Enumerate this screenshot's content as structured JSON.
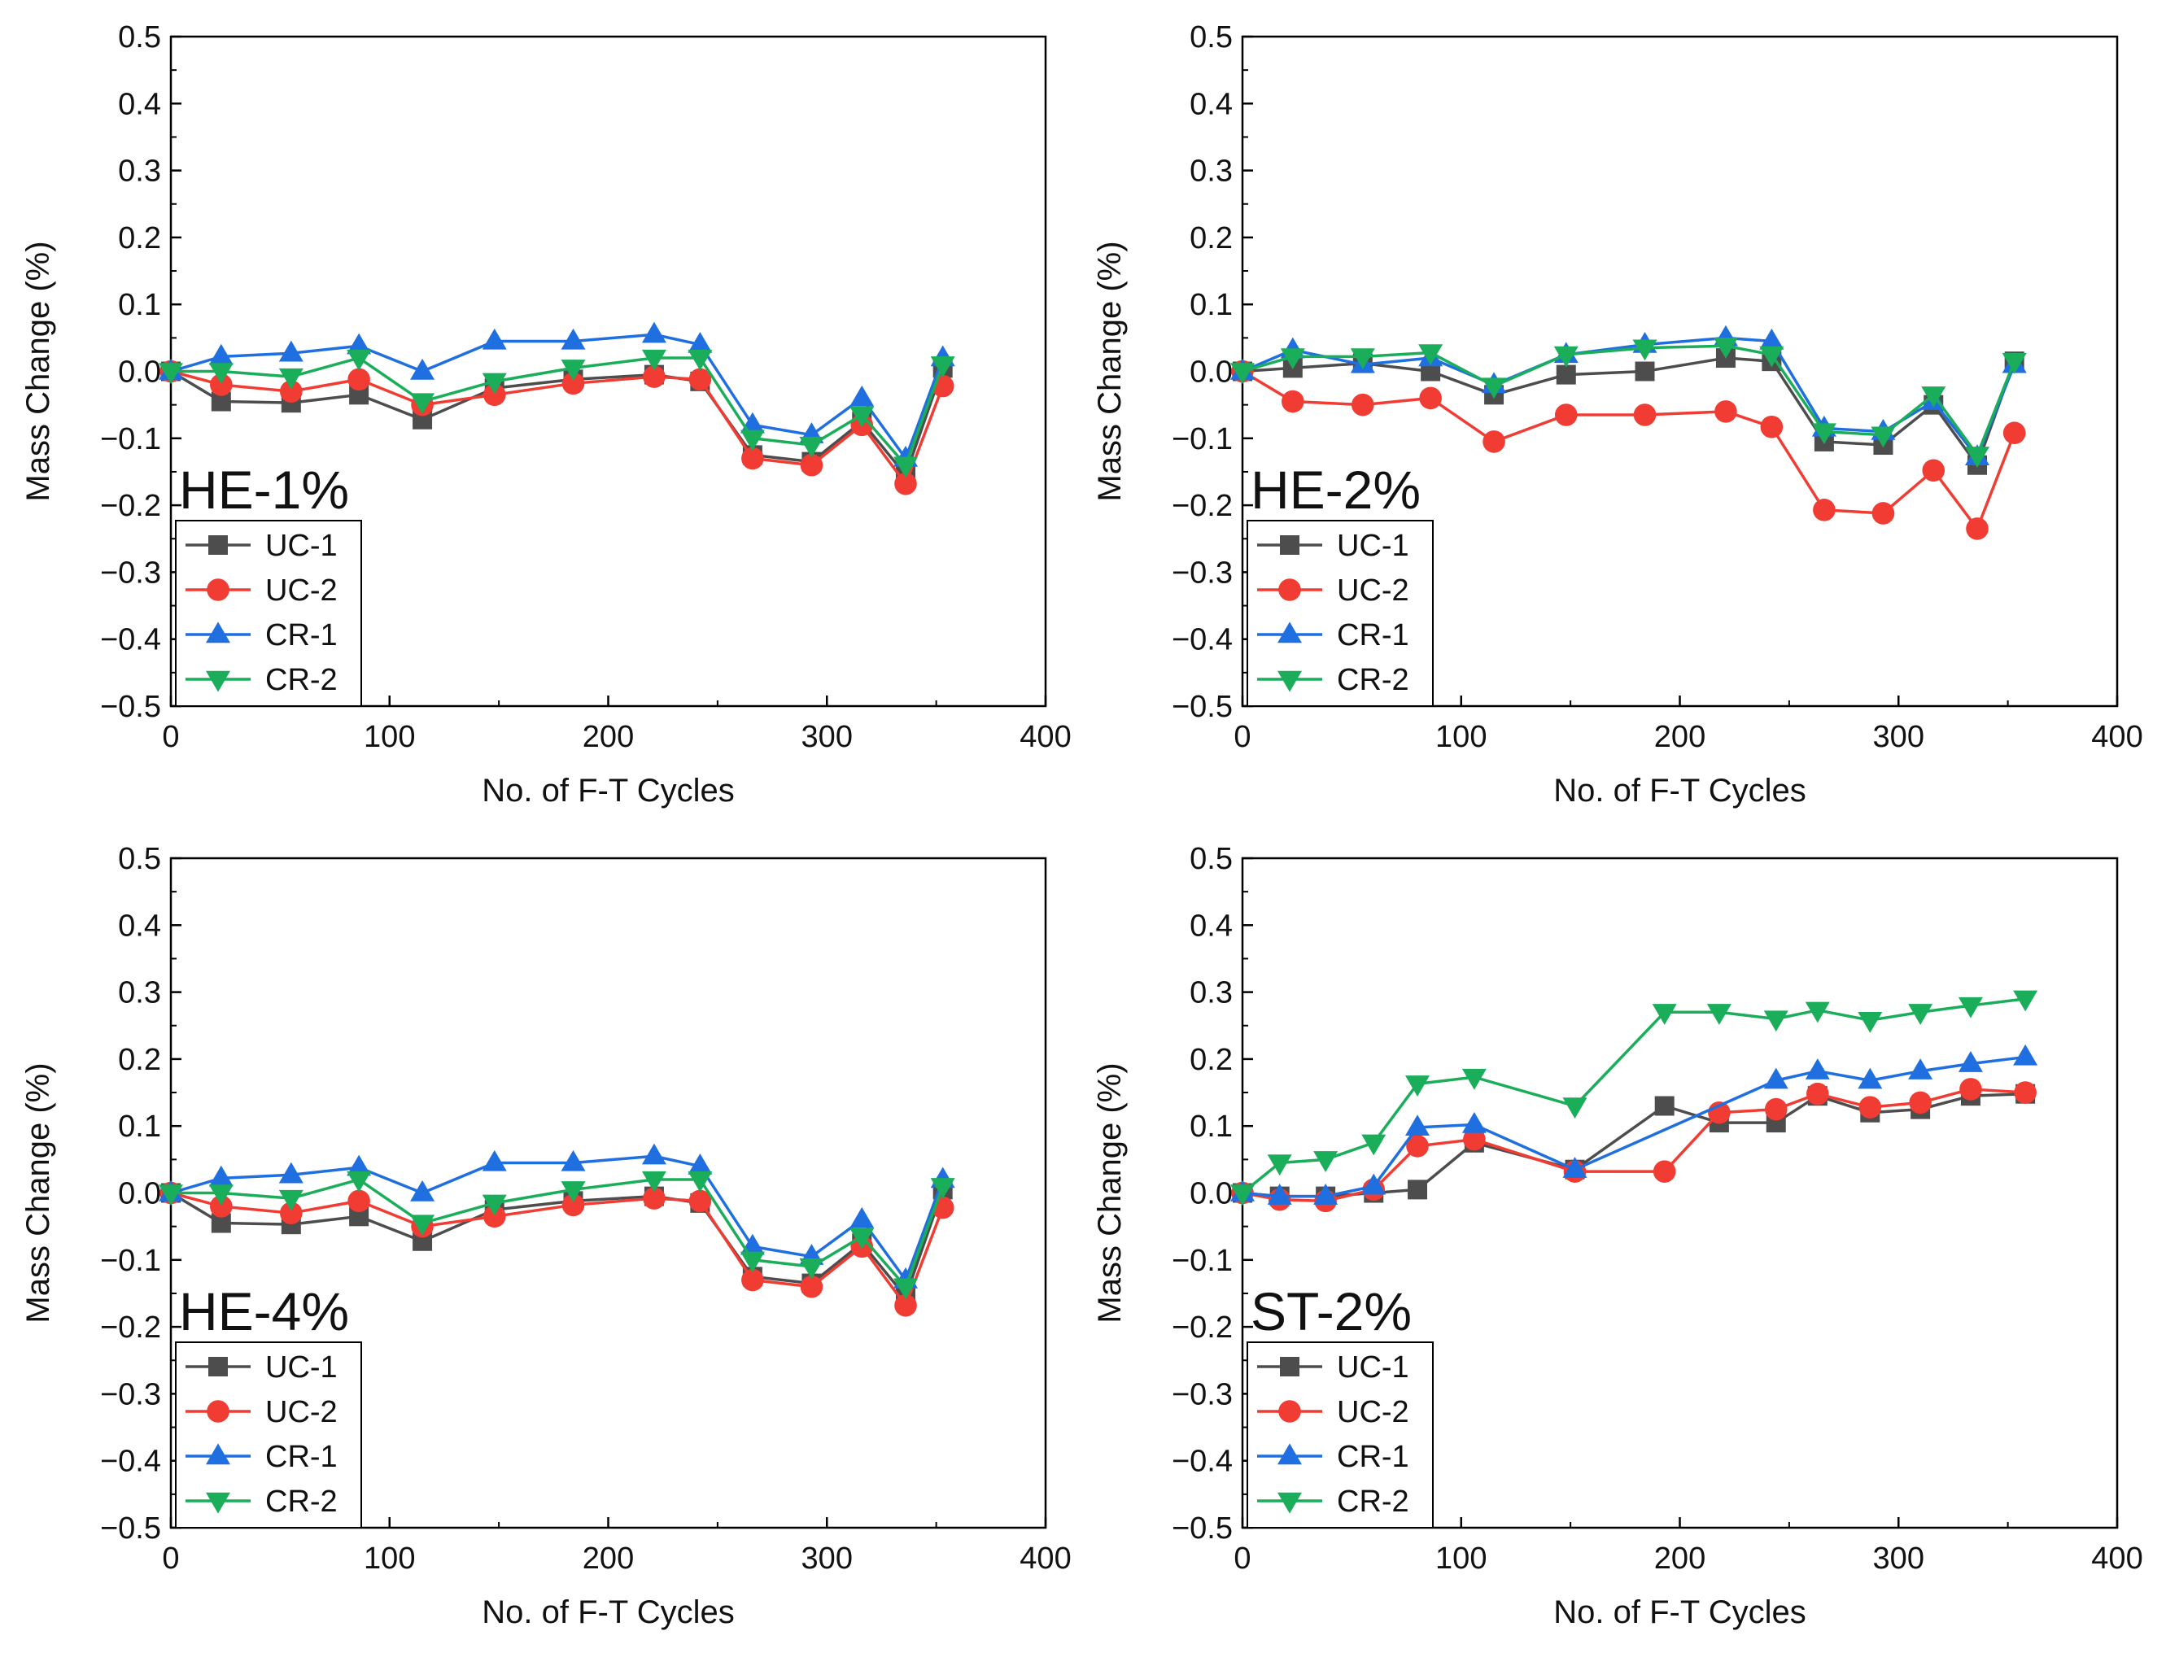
{
  "chart_data": [
    {
      "type": "line",
      "panel_label": "HE-1%",
      "xlabel": "No. of F-T Cycles",
      "ylabel": "Mass Change (%)",
      "xlim": [
        0,
        400
      ],
      "ylim": [
        -0.5,
        0.5
      ],
      "xticks": [
        "0",
        "100",
        "200",
        "300",
        "400"
      ],
      "yticks": [
        "0.5",
        "0.4",
        "0.3",
        "0.2",
        "0.1",
        "0.0",
        "−0.1",
        "−0.2",
        "−0.3",
        "−0.4",
        "−0.5"
      ],
      "legend": [
        "UC-1",
        "UC-2",
        "CR-1",
        "CR-2"
      ],
      "legend_position": "bottom-left",
      "series": [
        {
          "name": "UC-1",
          "x": [
            0,
            23,
            55,
            86,
            115,
            148,
            184,
            221,
            242,
            266,
            293,
            316,
            336,
            353
          ],
          "values": [
            0,
            -0.045,
            -0.047,
            -0.035,
            -0.072,
            -0.025,
            -0.012,
            -0.005,
            -0.015,
            -0.125,
            -0.135,
            -0.075,
            -0.155,
            0.005
          ]
        },
        {
          "name": "UC-2",
          "x": [
            0,
            23,
            55,
            86,
            115,
            148,
            184,
            221,
            242,
            266,
            293,
            316,
            336,
            353
          ],
          "values": [
            0,
            -0.02,
            -0.03,
            -0.012,
            -0.05,
            -0.035,
            -0.018,
            -0.008,
            -0.012,
            -0.13,
            -0.14,
            -0.08,
            -0.168,
            -0.022
          ]
        },
        {
          "name": "CR-1",
          "x": [
            0,
            23,
            55,
            86,
            115,
            148,
            184,
            221,
            242,
            266,
            293,
            316,
            336,
            353
          ],
          "values": [
            0,
            0.022,
            0.027,
            0.038,
            0.0,
            0.045,
            0.045,
            0.055,
            0.04,
            -0.08,
            -0.095,
            -0.04,
            -0.13,
            0.02
          ]
        },
        {
          "name": "CR-2",
          "x": [
            0,
            23,
            55,
            86,
            115,
            148,
            184,
            221,
            242,
            266,
            293,
            316,
            336,
            353
          ],
          "values": [
            0,
            0.0,
            -0.008,
            0.02,
            -0.045,
            -0.015,
            0.005,
            0.02,
            0.02,
            -0.1,
            -0.11,
            -0.065,
            -0.14,
            0.01
          ]
        }
      ]
    },
    {
      "type": "line",
      "panel_label": "HE-2%",
      "xlabel": "No. of F-T Cycles",
      "ylabel": "Mass Change (%)",
      "xlim": [
        0,
        400
      ],
      "ylim": [
        -0.5,
        0.5
      ],
      "xticks": [
        "0",
        "100",
        "200",
        "300",
        "400"
      ],
      "yticks": [
        "0.5",
        "0.4",
        "0.3",
        "0.2",
        "0.1",
        "0.0",
        "−0.1",
        "−0.2",
        "−0.3",
        "−0.4",
        "−0.5"
      ],
      "legend": [
        "UC-1",
        "UC-2",
        "CR-1",
        "CR-2"
      ],
      "legend_position": "bottom-left",
      "series": [
        {
          "name": "UC-1",
          "x": [
            0,
            23,
            55,
            86,
            115,
            148,
            184,
            221,
            242,
            266,
            293,
            316,
            336,
            353
          ],
          "values": [
            0,
            0.005,
            0.012,
            0.0,
            -0.035,
            -0.005,
            0.0,
            0.02,
            0.015,
            -0.105,
            -0.11,
            -0.05,
            -0.14,
            0.015
          ]
        },
        {
          "name": "UC-2",
          "x": [
            0,
            23,
            55,
            86,
            115,
            148,
            184,
            221,
            242,
            266,
            293,
            316,
            336,
            353
          ],
          "values": [
            0,
            -0.045,
            -0.05,
            -0.04,
            -0.105,
            -0.065,
            -0.065,
            -0.06,
            -0.083,
            -0.207,
            -0.212,
            -0.148,
            -0.235,
            -0.092
          ]
        },
        {
          "name": "CR-1",
          "x": [
            0,
            23,
            55,
            86,
            115,
            148,
            184,
            221,
            242,
            266,
            293,
            316,
            336,
            353
          ],
          "values": [
            0,
            0.032,
            0.01,
            0.02,
            -0.02,
            0.025,
            0.04,
            0.05,
            0.045,
            -0.085,
            -0.09,
            -0.045,
            -0.128,
            0.01
          ]
        },
        {
          "name": "CR-2",
          "x": [
            0,
            23,
            55,
            86,
            115,
            148,
            184,
            221,
            242,
            266,
            293,
            316,
            336,
            353
          ],
          "values": [
            0,
            0.022,
            0.022,
            0.028,
            -0.022,
            0.025,
            0.035,
            0.038,
            0.025,
            -0.09,
            -0.095,
            -0.035,
            -0.125,
            0.015
          ]
        }
      ]
    },
    {
      "type": "line",
      "panel_label": "HE-4%",
      "xlabel": "No. of F-T Cycles",
      "ylabel": "Mass Change (%)",
      "xlim": [
        0,
        400
      ],
      "ylim": [
        -0.5,
        0.5
      ],
      "xticks": [
        "0",
        "100",
        "200",
        "300",
        "400"
      ],
      "yticks": [
        "0.5",
        "0.4",
        "0.3",
        "0.2",
        "0.1",
        "0.0",
        "−0.1",
        "−0.2",
        "−0.3",
        "−0.4",
        "−0.5"
      ],
      "legend": [
        "UC-1",
        "UC-2",
        "CR-1",
        "CR-2"
      ],
      "legend_position": "bottom-left",
      "series": [
        {
          "name": "UC-1",
          "x": [
            0,
            23,
            55,
            86,
            115,
            148,
            184,
            221,
            242,
            266,
            293,
            316,
            336,
            353
          ],
          "values": [
            0,
            -0.045,
            -0.047,
            -0.035,
            -0.072,
            -0.025,
            -0.012,
            -0.005,
            -0.015,
            -0.125,
            -0.135,
            -0.075,
            -0.155,
            0.005
          ]
        },
        {
          "name": "UC-2",
          "x": [
            0,
            23,
            55,
            86,
            115,
            148,
            184,
            221,
            242,
            266,
            293,
            316,
            336,
            353
          ],
          "values": [
            0,
            -0.02,
            -0.03,
            -0.012,
            -0.05,
            -0.035,
            -0.018,
            -0.008,
            -0.012,
            -0.13,
            -0.14,
            -0.08,
            -0.168,
            -0.022
          ]
        },
        {
          "name": "CR-1",
          "x": [
            0,
            23,
            55,
            86,
            115,
            148,
            184,
            221,
            242,
            266,
            293,
            316,
            336,
            353
          ],
          "values": [
            0,
            0.022,
            0.027,
            0.038,
            0.0,
            0.045,
            0.045,
            0.055,
            0.04,
            -0.08,
            -0.095,
            -0.04,
            -0.13,
            0.02
          ]
        },
        {
          "name": "CR-2",
          "x": [
            0,
            23,
            55,
            86,
            115,
            148,
            184,
            221,
            242,
            266,
            293,
            316,
            336,
            353
          ],
          "values": [
            0,
            0.0,
            -0.008,
            0.02,
            -0.045,
            -0.015,
            0.005,
            0.02,
            0.02,
            -0.1,
            -0.11,
            -0.065,
            -0.14,
            0.01
          ]
        }
      ]
    },
    {
      "type": "line",
      "panel_label": "ST-2%",
      "xlabel": "No. of F-T Cycles",
      "ylabel": "Mass Change (%)",
      "xlim": [
        0,
        400
      ],
      "ylim": [
        -0.5,
        0.5
      ],
      "xticks": [
        "0",
        "100",
        "200",
        "300",
        "400"
      ],
      "yticks": [
        "0.5",
        "0.4",
        "0.3",
        "0.2",
        "0.1",
        "0.0",
        "−0.1",
        "−0.2",
        "−0.3",
        "−0.4",
        "−0.5"
      ],
      "legend": [
        "UC-1",
        "UC-2",
        "CR-1",
        "CR-2"
      ],
      "legend_position": "bottom-left",
      "series": [
        {
          "name": "UC-1",
          "x": [
            0,
            17,
            38,
            60,
            80,
            106,
            152,
            193,
            218,
            244,
            263,
            287,
            310,
            333,
            358
          ],
          "values": [
            0,
            -0.005,
            -0.005,
            0.0,
            0.005,
            0.075,
            0.035,
            0.13,
            0.105,
            0.105,
            0.145,
            0.12,
            0.125,
            0.145,
            0.148
          ]
        },
        {
          "name": "UC-2",
          "x": [
            0,
            17,
            38,
            60,
            80,
            106,
            152,
            193,
            218,
            244,
            263,
            287,
            310,
            333,
            358
          ],
          "values": [
            0,
            -0.01,
            -0.012,
            0.005,
            0.07,
            0.08,
            0.032,
            0.032,
            0.12,
            0.125,
            0.148,
            0.128,
            0.135,
            0.155,
            0.15
          ]
        },
        {
          "name": "CR-1",
          "x": [
            0,
            17,
            38,
            60,
            80,
            106,
            152,
            244,
            263,
            287,
            310,
            333,
            358
          ],
          "values": [
            0,
            -0.005,
            -0.005,
            0.01,
            0.098,
            0.102,
            0.035,
            0.168,
            0.182,
            0.168,
            0.182,
            0.193,
            0.203
          ]
        },
        {
          "name": "CR-2",
          "x": [
            0,
            17,
            38,
            60,
            80,
            106,
            152,
            193,
            218,
            244,
            263,
            287,
            310,
            333,
            358
          ],
          "values": [
            0,
            0.045,
            0.05,
            0.075,
            0.163,
            0.173,
            0.13,
            0.27,
            0.27,
            0.26,
            0.273,
            0.258,
            0.27,
            0.28,
            0.29
          ]
        }
      ]
    }
  ],
  "colors": {
    "UC-1": "#4d4d4d",
    "UC-2": "#f03c32",
    "CR-1": "#1f6fe0",
    "CR-2": "#1aad5a"
  },
  "markers": {
    "UC-1": "square",
    "UC-2": "circle",
    "CR-1": "triangle-up",
    "CR-2": "triangle-down"
  }
}
